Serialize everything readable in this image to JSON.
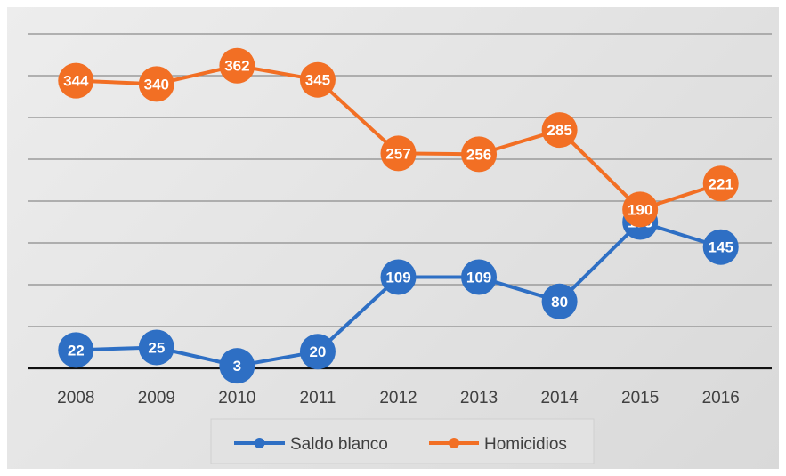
{
  "chart_data": {
    "type": "line",
    "categories": [
      "2008",
      "2009",
      "2010",
      "2011",
      "2012",
      "2013",
      "2014",
      "2015",
      "2016"
    ],
    "series": [
      {
        "name": "Saldo blanco",
        "values": [
          22,
          25,
          3,
          20,
          109,
          109,
          80,
          175,
          145
        ],
        "color": "#2e6fc4",
        "label_color": "#ffffff"
      },
      {
        "name": "Homicidios",
        "values": [
          344,
          340,
          362,
          345,
          257,
          256,
          285,
          190,
          221
        ],
        "color": "#f26f24",
        "label_color": "#ffffff"
      }
    ],
    "ylim": [
      0,
      400
    ],
    "grid": true,
    "legend_position": "bottom",
    "data_labels": true
  }
}
